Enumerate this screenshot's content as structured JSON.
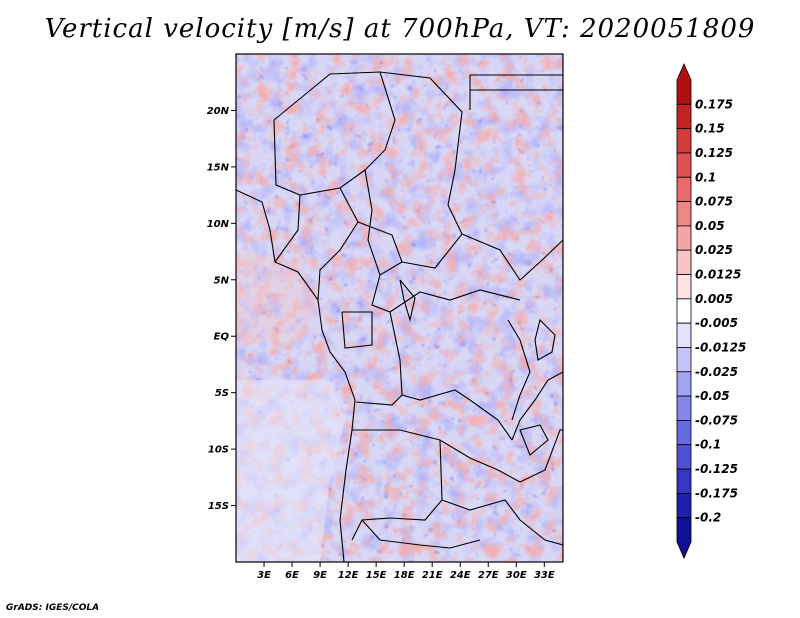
{
  "title": "Vertical velocity [m/s] at 700hPa, VT: 2020051809",
  "credit": "GrADS: IGES/COLA",
  "lat_ticks": [
    "20N",
    "15N",
    "10N",
    "5N",
    "EQ",
    "5S",
    "10S",
    "15S"
  ],
  "lon_ticks": [
    "3E",
    "6E",
    "9E",
    "12E",
    "15E",
    "18E",
    "21E",
    "24E",
    "27E",
    "30E",
    "33E"
  ],
  "colorbar": {
    "labels": [
      "0.175",
      "0.15",
      "0.125",
      "0.1",
      "0.075",
      "0.05",
      "0.025",
      "0.0125",
      "0.005",
      "-0.005",
      "-0.0125",
      "-0.025",
      "-0.05",
      "-0.075",
      "-0.1",
      "-0.125",
      "-0.175",
      "-0.2"
    ],
    "colors": [
      "#b01010",
      "#c42424",
      "#d43c3c",
      "#e05252",
      "#e86a6a",
      "#ef8686",
      "#f4a4a4",
      "#f8c4c4",
      "#fce2e2",
      "#ffffff",
      "#e2e2fc",
      "#c4c4f8",
      "#a4a4f2",
      "#8686ea",
      "#6a6ae0",
      "#5050d4",
      "#3636c2",
      "#2020ae",
      "#10109a"
    ]
  },
  "chart_data": {
    "type": "heatmap",
    "title": "Vertical velocity [m/s] at 700hPa, VT: 2020051809",
    "variable": "Vertical velocity",
    "units": "m/s",
    "level": "700hPa",
    "valid_time": "2020051809",
    "lon_range": [
      0,
      35
    ],
    "lat_range": [
      -20,
      25
    ],
    "contour_levels": [
      -0.2,
      -0.175,
      -0.125,
      -0.1,
      -0.075,
      -0.05,
      -0.025,
      -0.0125,
      -0.005,
      0.005,
      0.0125,
      0.025,
      0.05,
      0.075,
      0.1,
      0.125,
      0.15,
      0.175
    ]
  }
}
